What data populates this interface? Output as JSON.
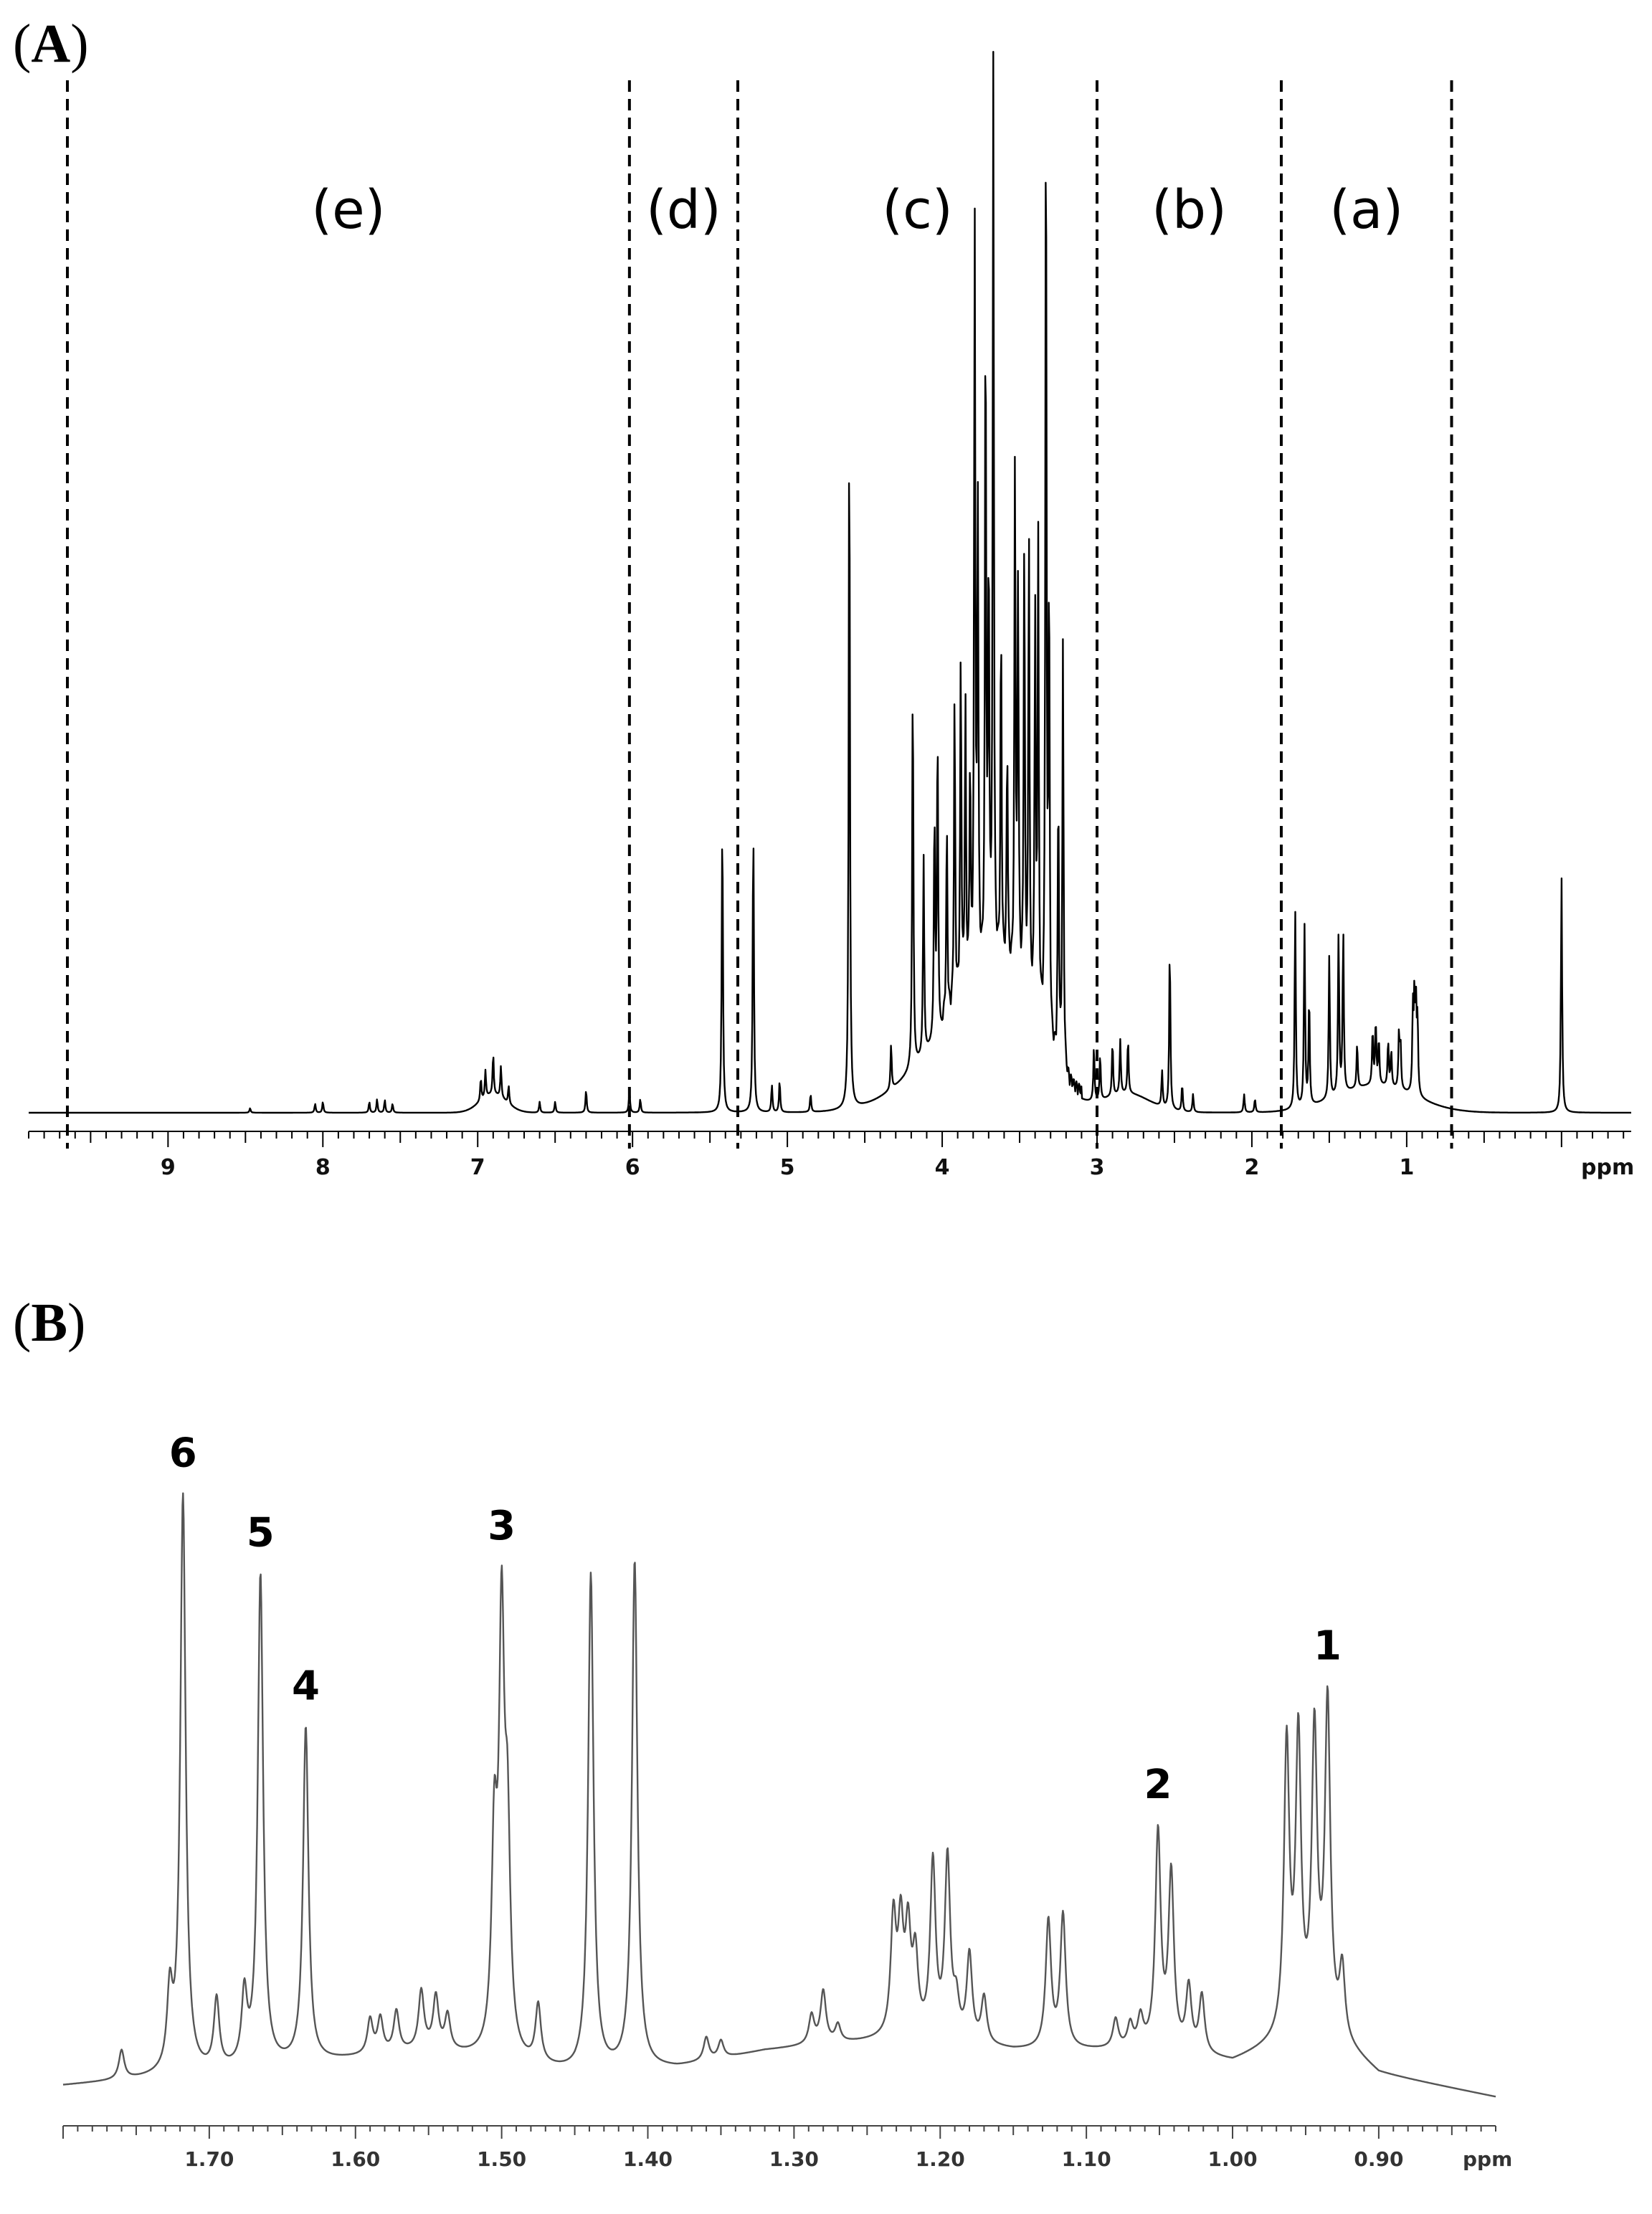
{
  "panel_a": {
    "label": "A"
  },
  "panel_b": {
    "label": "B"
  },
  "chart_data": [
    {
      "type": "line",
      "panel": "A",
      "xlabel": "ppm",
      "xlim": [
        9.9,
        -0.45
      ],
      "x_reversed": true,
      "major_ticks": [
        9,
        8,
        7,
        6,
        5,
        4,
        3,
        2,
        1
      ],
      "tick_labels": [
        "9",
        "8",
        "7",
        "6",
        "5",
        "4",
        "3",
        "2",
        "1"
      ],
      "minor_tick_step": 0.1,
      "regions": [
        {
          "label": "(e)",
          "from": 9.65,
          "to": 6.02
        },
        {
          "label": "(d)",
          "from": 6.02,
          "to": 5.32
        },
        {
          "label": "(c)",
          "from": 5.32,
          "to": 3.0
        },
        {
          "label": "(b)",
          "from": 3.0,
          "to": 1.81
        },
        {
          "label": "(a)",
          "from": 1.81,
          "to": 0.71
        }
      ],
      "dividers": [
        9.65,
        6.02,
        5.32,
        3.0,
        1.81,
        0.71
      ],
      "baseline_humps": [
        {
          "center": 3.8,
          "width": 0.45,
          "height": 0.1
        },
        {
          "center": 3.55,
          "width": 0.25,
          "height": 0.06
        },
        {
          "center": 6.9,
          "width": 0.12,
          "height": 0.02
        },
        {
          "center": 2.8,
          "width": 0.2,
          "height": 0.02
        },
        {
          "center": 1.2,
          "width": 0.35,
          "height": 0.03
        }
      ],
      "peaks": [
        {
          "x": 8.47,
          "y": 0.005
        },
        {
          "x": 8.05,
          "y": 0.01
        },
        {
          "x": 8.0,
          "y": 0.012
        },
        {
          "x": 7.7,
          "y": 0.012
        },
        {
          "x": 7.65,
          "y": 0.015
        },
        {
          "x": 7.6,
          "y": 0.014
        },
        {
          "x": 7.55,
          "y": 0.01
        },
        {
          "x": 6.98,
          "y": 0.025
        },
        {
          "x": 6.95,
          "y": 0.03
        },
        {
          "x": 6.9,
          "y": 0.045
        },
        {
          "x": 6.85,
          "y": 0.035
        },
        {
          "x": 6.8,
          "y": 0.02
        },
        {
          "x": 6.6,
          "y": 0.012
        },
        {
          "x": 6.5,
          "y": 0.012
        },
        {
          "x": 6.3,
          "y": 0.025
        },
        {
          "x": 6.02,
          "y": 0.025
        },
        {
          "x": 5.95,
          "y": 0.015
        },
        {
          "x": 5.42,
          "y": 0.33
        },
        {
          "x": 5.22,
          "y": 0.32
        },
        {
          "x": 5.1,
          "y": 0.03
        },
        {
          "x": 5.05,
          "y": 0.035
        },
        {
          "x": 4.85,
          "y": 0.02
        },
        {
          "x": 4.6,
          "y": 0.78
        },
        {
          "x": 4.33,
          "y": 0.05
        },
        {
          "x": 4.19,
          "y": 0.44
        },
        {
          "x": 4.12,
          "y": 0.22
        },
        {
          "x": 4.05,
          "y": 0.25
        },
        {
          "x": 4.03,
          "y": 0.34
        },
        {
          "x": 3.97,
          "y": 0.21
        },
        {
          "x": 3.92,
          "y": 0.34
        },
        {
          "x": 3.88,
          "y": 0.38
        },
        {
          "x": 3.85,
          "y": 0.32
        },
        {
          "x": 3.82,
          "y": 0.24
        },
        {
          "x": 3.79,
          "y": 0.84
        },
        {
          "x": 3.77,
          "y": 0.52
        },
        {
          "x": 3.72,
          "y": 0.74
        },
        {
          "x": 3.7,
          "y": 0.45
        },
        {
          "x": 3.67,
          "y": 1.0
        },
        {
          "x": 3.62,
          "y": 0.38
        },
        {
          "x": 3.58,
          "y": 0.25
        },
        {
          "x": 3.53,
          "y": 0.57
        },
        {
          "x": 3.51,
          "y": 0.44
        },
        {
          "x": 3.47,
          "y": 0.5
        },
        {
          "x": 3.44,
          "y": 0.52
        },
        {
          "x": 3.4,
          "y": 0.44
        },
        {
          "x": 3.38,
          "y": 0.53
        },
        {
          "x": 3.33,
          "y": 1.07
        },
        {
          "x": 3.31,
          "y": 0.5
        },
        {
          "x": 3.25,
          "y": 0.3
        },
        {
          "x": 3.22,
          "y": 0.47
        },
        {
          "x": 3.02,
          "y": 0.06
        },
        {
          "x": 2.98,
          "y": 0.05
        },
        {
          "x": 2.9,
          "y": 0.06
        },
        {
          "x": 2.85,
          "y": 0.06
        },
        {
          "x": 2.8,
          "y": 0.06
        },
        {
          "x": 2.58,
          "y": 0.04
        },
        {
          "x": 2.53,
          "y": 0.18
        },
        {
          "x": 2.45,
          "y": 0.03
        },
        {
          "x": 2.38,
          "y": 0.02
        },
        {
          "x": 2.05,
          "y": 0.02
        },
        {
          "x": 1.98,
          "y": 0.015
        },
        {
          "x": 1.72,
          "y": 0.22
        },
        {
          "x": 1.66,
          "y": 0.2
        },
        {
          "x": 1.63,
          "y": 0.12
        },
        {
          "x": 1.5,
          "y": 0.16
        },
        {
          "x": 1.44,
          "y": 0.18
        },
        {
          "x": 1.41,
          "y": 0.18
        },
        {
          "x": 1.32,
          "y": 0.05
        },
        {
          "x": 1.22,
          "y": 0.06
        },
        {
          "x": 1.2,
          "y": 0.07
        },
        {
          "x": 1.18,
          "y": 0.05
        },
        {
          "x": 1.12,
          "y": 0.05
        },
        {
          "x": 1.1,
          "y": 0.04
        },
        {
          "x": 1.05,
          "y": 0.06
        },
        {
          "x": 1.04,
          "y": 0.05
        },
        {
          "x": 0.96,
          "y": 0.09
        },
        {
          "x": 0.95,
          "y": 0.1
        },
        {
          "x": 0.94,
          "y": 0.09
        },
        {
          "x": 0.93,
          "y": 0.08
        },
        {
          "x": 0.0,
          "y": 0.26
        }
      ]
    },
    {
      "type": "line",
      "panel": "B",
      "xlabel": "ppm",
      "xlim": [
        1.8,
        0.82
      ],
      "x_reversed": true,
      "major_ticks": [
        1.7,
        1.6,
        1.5,
        1.4,
        1.3,
        1.2,
        1.1,
        1.0,
        0.9
      ],
      "tick_labels": [
        "1.70",
        "1.60",
        "1.50",
        "1.40",
        "1.30",
        "1.20",
        "1.10",
        "1.00",
        "0.90"
      ],
      "minor_tick_step": 0.01,
      "baseline": [
        {
          "x": 1.8,
          "y": 0.02
        },
        {
          "x": 1.7,
          "y": 0.04
        },
        {
          "x": 1.55,
          "y": 0.08
        },
        {
          "x": 1.45,
          "y": 0.04
        },
        {
          "x": 1.38,
          "y": 0.05
        },
        {
          "x": 1.32,
          "y": 0.08
        },
        {
          "x": 1.28,
          "y": 0.09
        },
        {
          "x": 1.22,
          "y": 0.1
        },
        {
          "x": 1.15,
          "y": 0.08
        },
        {
          "x": 1.05,
          "y": 0.08
        },
        {
          "x": 1.0,
          "y": 0.06
        },
        {
          "x": 0.94,
          "y": 0.12
        },
        {
          "x": 0.9,
          "y": 0.04
        },
        {
          "x": 0.82,
          "y": 0.0
        }
      ],
      "peak_labels": [
        {
          "label": "6",
          "x": 1.718
        },
        {
          "label": "5",
          "x": 1.665
        },
        {
          "label": "4",
          "x": 1.634
        },
        {
          "label": "3",
          "x": 1.5
        },
        {
          "label": "2",
          "x": 1.051
        },
        {
          "label": "1",
          "x": 0.935
        }
      ],
      "peaks": [
        {
          "x": 1.76,
          "y": 0.05
        },
        {
          "x": 1.727,
          "y": 0.13
        },
        {
          "x": 1.718,
          "y": 1.0
        },
        {
          "x": 1.695,
          "y": 0.12
        },
        {
          "x": 1.676,
          "y": 0.12
        },
        {
          "x": 1.665,
          "y": 0.85
        },
        {
          "x": 1.634,
          "y": 0.58
        },
        {
          "x": 1.59,
          "y": 0.06
        },
        {
          "x": 1.583,
          "y": 0.06
        },
        {
          "x": 1.572,
          "y": 0.07
        },
        {
          "x": 1.555,
          "y": 0.1
        },
        {
          "x": 1.545,
          "y": 0.09
        },
        {
          "x": 1.537,
          "y": 0.06
        },
        {
          "x": 1.505,
          "y": 0.35
        },
        {
          "x": 1.5,
          "y": 0.72
        },
        {
          "x": 1.496,
          "y": 0.35
        },
        {
          "x": 1.475,
          "y": 0.1
        },
        {
          "x": 1.439,
          "y": 0.86
        },
        {
          "x": 1.409,
          "y": 0.88
        },
        {
          "x": 1.36,
          "y": 0.04
        },
        {
          "x": 1.35,
          "y": 0.03
        },
        {
          "x": 1.288,
          "y": 0.05
        },
        {
          "x": 1.28,
          "y": 0.09
        },
        {
          "x": 1.27,
          "y": 0.03
        },
        {
          "x": 1.232,
          "y": 0.2
        },
        {
          "x": 1.227,
          "y": 0.18
        },
        {
          "x": 1.222,
          "y": 0.17
        },
        {
          "x": 1.217,
          "y": 0.13
        },
        {
          "x": 1.205,
          "y": 0.3
        },
        {
          "x": 1.195,
          "y": 0.31
        },
        {
          "x": 1.189,
          "y": 0.06
        },
        {
          "x": 1.18,
          "y": 0.15
        },
        {
          "x": 1.17,
          "y": 0.08
        },
        {
          "x": 1.126,
          "y": 0.22
        },
        {
          "x": 1.116,
          "y": 0.23
        },
        {
          "x": 1.08,
          "y": 0.05
        },
        {
          "x": 1.07,
          "y": 0.04
        },
        {
          "x": 1.063,
          "y": 0.05
        },
        {
          "x": 1.051,
          "y": 0.37
        },
        {
          "x": 1.042,
          "y": 0.3
        },
        {
          "x": 1.03,
          "y": 0.11
        },
        {
          "x": 1.021,
          "y": 0.1
        },
        {
          "x": 0.963,
          "y": 0.5
        },
        {
          "x": 0.955,
          "y": 0.5
        },
        {
          "x": 0.944,
          "y": 0.5
        },
        {
          "x": 0.935,
          "y": 0.56
        },
        {
          "x": 0.925,
          "y": 0.12
        }
      ]
    }
  ]
}
